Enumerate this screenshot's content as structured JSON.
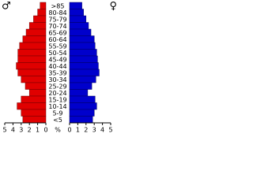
{
  "chart_data": {
    "type": "pyramid",
    "male_symbol": "♂",
    "female_symbol": "♀",
    "unit": "%",
    "categories": [
      ">85",
      "80-84",
      "75-79",
      "70-74",
      "65-69",
      "60-64",
      "55-59",
      "50-54",
      "45-49",
      "40-44",
      "35-39",
      "30-34",
      "25-29",
      "20-24",
      "15-19",
      "10-14",
      "5-9",
      "<5"
    ],
    "series": [
      {
        "color": "#e00000",
        "values": [
          0.7,
          1.0,
          1.5,
          2.0,
          2.4,
          2.8,
          3.2,
          3.4,
          3.4,
          3.6,
          3.4,
          3.0,
          2.5,
          2.0,
          3.0,
          3.5,
          3.0,
          2.8
        ]
      },
      {
        "color": "#0000cc",
        "values": [
          1.5,
          1.7,
          2.0,
          2.3,
          2.6,
          3.0,
          3.1,
          3.3,
          3.4,
          3.5,
          3.6,
          3.2,
          2.7,
          2.2,
          3.1,
          3.3,
          3.0,
          2.8
        ]
      }
    ],
    "xlim": [
      0,
      5
    ],
    "xticks": [
      0,
      1,
      2,
      3,
      4,
      5
    ]
  }
}
